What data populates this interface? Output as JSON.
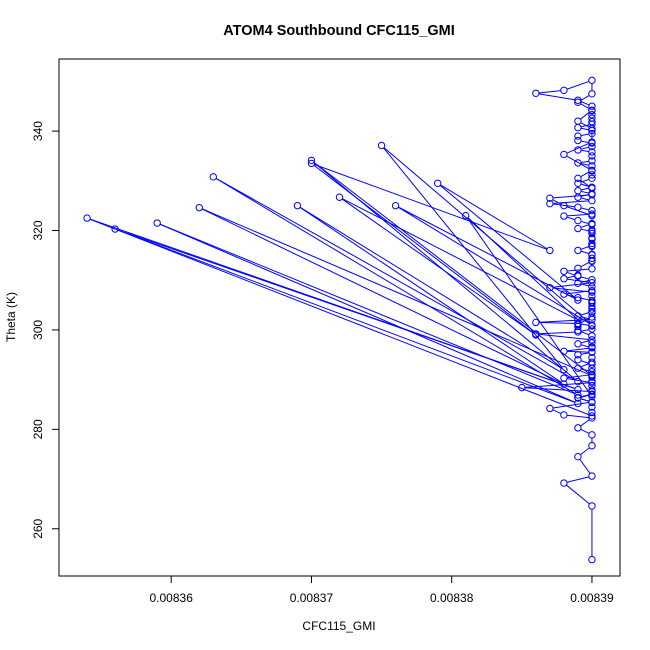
{
  "chart_data": {
    "type": "line",
    "title": "ATOM4 Southbound CFC115_GMI",
    "xlabel": "CFC115_GMI",
    "ylabel": "Theta (K)",
    "xlim": [
      0.008352,
      0.008392
    ],
    "ylim": [
      250.5,
      354.5
    ],
    "xticks": [
      0.00836,
      0.00837,
      0.00838,
      0.00839
    ],
    "xtick_labels": [
      "0.00836",
      "0.00837",
      "0.00838",
      "0.00839"
    ],
    "yticks": [
      260,
      280,
      300,
      320,
      340
    ],
    "ytick_labels": [
      "260",
      "280",
      "300",
      "320",
      "340"
    ],
    "grid": false,
    "series_color": "#0000ff",
    "series": [
      {
        "x": [
          0.00839,
          0.00839,
          0.008388,
          0.00839,
          0.008389,
          0.00839,
          0.00839,
          0.008389,
          0.00839,
          0.008388,
          0.008387,
          0.00839,
          0.008389,
          0.00839,
          0.00839,
          0.008385,
          0.00839,
          0.008388,
          0.00839,
          0.00839,
          0.00839,
          0.008389,
          0.008389,
          0.00839,
          0.008388,
          0.00839,
          0.008389,
          0.00839,
          0.008386,
          0.008389,
          0.00839,
          0.00839,
          0.008389,
          0.008386,
          0.00839,
          0.008389,
          0.00839,
          0.00839,
          0.00839,
          0.00839,
          0.008389,
          0.008388,
          0.00839,
          0.00839,
          0.008389,
          0.00839,
          0.008389,
          0.008388,
          0.00839,
          0.00839,
          0.00839,
          0.00839,
          0.008389,
          0.00839,
          0.00839,
          0.00839,
          0.00839,
          0.00839,
          0.00839,
          0.008389,
          0.008388,
          0.00839,
          0.00839,
          0.008389,
          0.008387,
          0.00839,
          0.008389,
          0.00839,
          0.008389,
          0.00839,
          0.008389,
          0.00839,
          0.00839,
          0.00839,
          0.00839,
          0.008389,
          0.00839,
          0.00839,
          0.00839,
          0.008389,
          0.00839,
          0.00839,
          0.008389,
          0.008389,
          0.00839,
          0.00839,
          0.008389,
          0.00839,
          0.00839,
          0.00839,
          0.00839,
          0.00839,
          0.00839,
          0.008389,
          0.008386,
          0.008388,
          0.00839,
          0.00839,
          0.008389,
          0.00839,
          0.008389,
          0.00839,
          0.00839,
          0.008388,
          0.00839,
          0.008389,
          0.00839,
          0.00839,
          0.008387,
          0.008388,
          0.00839,
          0.00839,
          0.008389,
          0.00839,
          0.00839,
          0.00839,
          0.00839,
          0.00839,
          0.008389,
          0.008389,
          0.008388,
          0.00839,
          0.008387,
          0.00839,
          0.00839,
          0.00839,
          0.00839,
          0.00839,
          0.00839,
          0.008389,
          0.008389,
          0.008389,
          0.00839,
          0.00839,
          0.00839,
          0.00839,
          0.00839,
          0.00839,
          0.008389,
          0.00839,
          0.00839,
          0.00839,
          0.00839,
          0.00839,
          0.00839,
          0.008389,
          0.00839,
          0.00839,
          0.00839,
          0.00839,
          0.008354,
          0.008389,
          0.008356,
          0.008389,
          0.008359,
          0.008389,
          0.008363,
          0.008389,
          0.00837,
          0.00839,
          0.008362,
          0.008388,
          0.008369,
          0.008388,
          0.008375,
          0.00839,
          0.008376,
          0.008389,
          0.008379,
          0.008387,
          0.00837,
          0.008386,
          0.008372,
          0.008389,
          0.008381,
          0.00839
        ],
        "y": [
          253.8,
          264.6,
          269.2,
          270.6,
          274.5,
          276.7,
          278.9,
          280.3,
          282.3,
          282.9,
          284.2,
          285.5,
          286.3,
          287.0,
          287.6,
          288.4,
          289.4,
          290.3,
          291.0,
          292.3,
          293.1,
          294.0,
          295.0,
          295.5,
          295.7,
          296.4,
          297.2,
          298.0,
          299.2,
          299.6,
          300.2,
          300.8,
          301.3,
          301.5,
          302.1,
          302.8,
          303.7,
          304.7,
          305.6,
          305.9,
          306.5,
          307.2,
          307.9,
          308.7,
          309.4,
          310.1,
          310.8,
          311.8,
          312.3,
          313.8,
          314.4,
          315.2,
          316.0,
          317.0,
          317.4,
          318.3,
          319.4,
          320.1,
          321.2,
          322.0,
          322.9,
          323.3,
          324.0,
          324.7,
          325.4,
          326.0,
          326.7,
          327.4,
          328.0,
          328.7,
          329.5,
          330.5,
          331.2,
          332.0,
          333.0,
          333.6,
          334.0,
          335.0,
          335.8,
          336.2,
          336.9,
          337.6,
          338.1,
          339.0,
          339.5,
          340.1,
          340.7,
          341.4,
          341.9,
          342.6,
          343.3,
          344.1,
          345.0,
          346.2,
          347.6,
          348.2,
          350.2,
          347.5,
          345.8,
          344.2,
          342.0,
          340.5,
          337.8,
          335.3,
          332.1,
          330.5,
          328.5,
          327.2,
          326.5,
          325.0,
          323.0,
          321.4,
          320.4,
          319.8,
          318.5,
          316.8,
          315.1,
          313.9,
          312.4,
          311.0,
          310.3,
          309.5,
          308.5,
          307.6,
          306.8,
          305.4,
          304.2,
          303.4,
          302.6,
          301.1,
          300.7,
          299.9,
          298.8,
          297.4,
          296.6,
          295.6,
          294.4,
          293.5,
          292.3,
          291.6,
          290.5,
          289.7,
          288.8,
          287.9,
          287.1,
          286.4,
          285.4,
          284.5,
          283.4,
          282.7,
          322.5,
          288.0,
          320.3,
          285.2,
          321.5,
          286.9,
          330.8,
          289.6,
          334.1,
          290.8,
          324.6,
          289.1,
          325.0,
          292.0,
          337.1,
          301.0,
          325.0,
          306.0,
          329.5,
          316.0,
          333.5,
          299.0,
          326.7,
          302.0,
          323.0,
          286.6
        ]
      }
    ]
  }
}
